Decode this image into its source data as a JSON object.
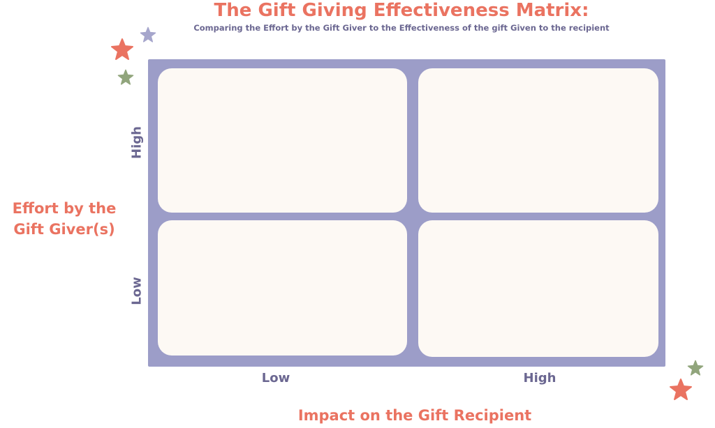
{
  "header": {
    "title": "The Gift Giving Effectiveness Matrix:",
    "subtitle": "Comparing the Effort by the Gift Giver to the Effectiveness of the gift Given to the recipient"
  },
  "axes": {
    "y_label_line1": "Effort by the",
    "y_label_line2": "Gift Giver(s)",
    "y_high": "High",
    "y_low": "Low",
    "x_label": "Impact on the Gift Recipient",
    "x_low": "Low",
    "x_high": "High"
  },
  "colors": {
    "accent": "#ea7361",
    "frame": "#9c9dc8",
    "cell": "#fdf9f4",
    "axis_text": "#6b6791",
    "star_purple": "#a6a6cc",
    "star_green": "#91a57c",
    "star_red": "#ea7361"
  },
  "decorations": [
    "star-icon",
    "star-icon",
    "star-icon",
    "star-icon",
    "star-icon"
  ]
}
